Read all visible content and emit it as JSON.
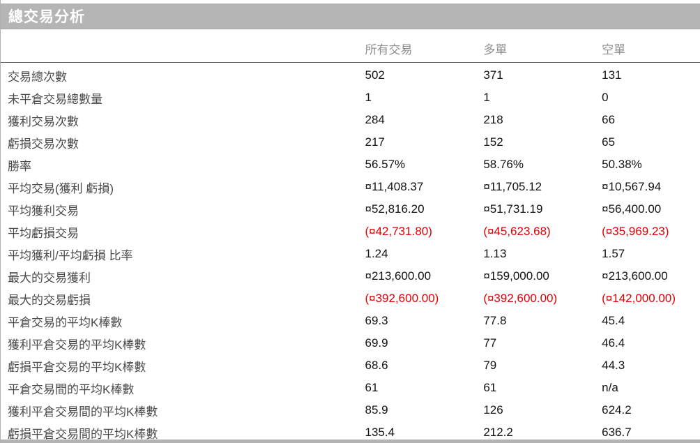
{
  "panel": {
    "title": "總交易分析"
  },
  "table": {
    "columns": [
      "所有交易",
      "多單",
      "空單"
    ],
    "rows": [
      {
        "label": "交易總次數",
        "values": [
          "502",
          "371",
          "131"
        ]
      },
      {
        "label": "未平倉交易總數量",
        "values": [
          "1",
          "1",
          "0"
        ]
      },
      {
        "label": "獲利交易次數",
        "values": [
          "284",
          "218",
          "66"
        ]
      },
      {
        "label": "虧損交易次數",
        "values": [
          "217",
          "152",
          "65"
        ]
      },
      {
        "label": "勝率",
        "values": [
          "56.57%",
          "58.76%",
          "50.38%"
        ]
      },
      {
        "label": "平均交易(獲利  虧損)",
        "values": [
          "¤11,408.37",
          "¤11,705.12",
          "¤10,567.94"
        ]
      },
      {
        "label": "平均獲利交易",
        "values": [
          "¤52,816.20",
          "¤51,731.19",
          "¤56,400.00"
        ]
      },
      {
        "label": "平均虧損交易",
        "values": [
          "(¤42,731.80)",
          "(¤45,623.68)",
          "(¤35,969.23)"
        ]
      },
      {
        "label": "平均獲利/平均虧損  比率",
        "values": [
          "1.24",
          "1.13",
          "1.57"
        ]
      },
      {
        "label": "最大的交易獲利",
        "values": [
          "¤213,600.00",
          "¤159,000.00",
          "¤213,600.00"
        ]
      },
      {
        "label": "最大的交易虧損",
        "values": [
          "(¤392,600.00)",
          "(¤392,600.00)",
          "(¤142,000.00)"
        ]
      },
      {
        "label": "平倉交易的平均K棒數",
        "values": [
          "69.3",
          "77.8",
          "45.4"
        ]
      },
      {
        "label": "獲利平倉交易的平均K棒數",
        "values": [
          "69.9",
          "77",
          "46.4"
        ]
      },
      {
        "label": "虧損平倉交易的平均K棒數",
        "values": [
          "68.6",
          "79",
          "44.3"
        ]
      },
      {
        "label": "平倉交易間的平均K棒數",
        "values": [
          "61",
          "61",
          "n/a"
        ]
      },
      {
        "label": "獲利平倉交易間的平均K棒數",
        "values": [
          "85.9",
          "126",
          "624.2"
        ]
      },
      {
        "label": "虧損平倉交易間的平均K棒數",
        "values": [
          "135.4",
          "212.2",
          "636.7"
        ]
      }
    ]
  },
  "colors": {
    "title_bar_bg": "#b5b5b5",
    "title_text": "#ffffff",
    "header_text": "#8e8e8e",
    "label_text": "#4a4a4a",
    "value_text": "#131313",
    "negative_text": "#e00000"
  }
}
